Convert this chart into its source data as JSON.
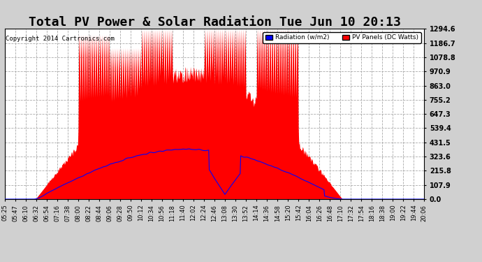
{
  "title": "Total PV Power & Solar Radiation Tue Jun 10 20:13",
  "copyright": "Copyright 2014 Cartronics.com",
  "legend_labels": [
    "Radiation (w/m2)",
    "PV Panels (DC Watts)"
  ],
  "legend_colors": [
    "blue",
    "red"
  ],
  "yticks": [
    0.0,
    107.9,
    215.8,
    323.6,
    431.5,
    539.4,
    647.3,
    755.2,
    863.0,
    970.9,
    1078.8,
    1186.7,
    1294.6
  ],
  "ymax": 1294.6,
  "ymin": 0.0,
  "background_color": "#d0d0d0",
  "plot_bg_color": "#ffffff",
  "grid_color": "#aaaaaa",
  "title_fontsize": 13,
  "xtick_rotation": 90,
  "time_labels": [
    "05:25",
    "05:47",
    "06:10",
    "06:32",
    "06:54",
    "07:16",
    "07:38",
    "08:00",
    "08:22",
    "08:44",
    "09:06",
    "09:28",
    "09:50",
    "10:12",
    "10:34",
    "10:56",
    "11:18",
    "11:40",
    "12:02",
    "12:24",
    "12:46",
    "13:08",
    "13:30",
    "13:52",
    "14:14",
    "14:36",
    "14:58",
    "15:20",
    "15:42",
    "16:04",
    "16:26",
    "16:48",
    "17:10",
    "17:32",
    "17:54",
    "18:16",
    "18:38",
    "19:00",
    "19:22",
    "19:44",
    "20:06"
  ]
}
